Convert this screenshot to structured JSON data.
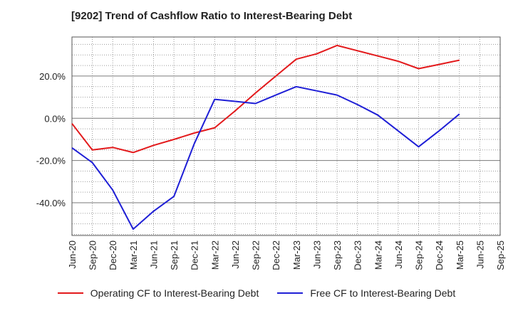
{
  "chart_data": {
    "type": "line",
    "title": "[9202]  Trend of Cashflow Ratio to Interest-Bearing Debt",
    "xlabel": "",
    "ylabel": "",
    "categories": [
      "Jun-20",
      "Sep-20",
      "Dec-20",
      "Mar-21",
      "Jun-21",
      "Sep-21",
      "Dec-21",
      "Mar-22",
      "Jun-22",
      "Sep-22",
      "Dec-22",
      "Mar-23",
      "Jun-23",
      "Sep-23",
      "Dec-23",
      "Mar-24",
      "Jun-24",
      "Sep-24",
      "Dec-24",
      "Mar-25",
      "Jun-25",
      "Sep-25"
    ],
    "y_ticks": [
      20,
      0,
      -20,
      -40
    ],
    "y_tick_labels": [
      "20.0%",
      "0.0%",
      "-20.0%",
      "-40.0%"
    ],
    "ylim": [
      -55.5,
      38.5
    ],
    "grid": true,
    "legend_position": "bottom",
    "series": [
      {
        "name": "Operating CF to Interest-Bearing Debt",
        "color": "#e31a1c",
        "values": [
          -2.5,
          -15.0,
          -13.8,
          -16.2,
          -12.8,
          -10.0,
          -7.0,
          -4.5,
          3.5,
          12.0,
          20.0,
          28.0,
          30.5,
          34.5,
          32.0,
          29.5,
          27.0,
          23.5,
          25.5,
          27.5,
          null,
          null
        ]
      },
      {
        "name": "Free CF to Interest-Bearing Debt",
        "color": "#1f1fd6",
        "values": [
          -14.0,
          -21.0,
          -34.0,
          -52.5,
          -44.0,
          -37.0,
          -12.0,
          9.0,
          8.0,
          7.0,
          11.0,
          15.0,
          13.0,
          11.0,
          6.5,
          1.5,
          -6.0,
          -13.5,
          -6.0,
          2.0,
          null,
          null
        ]
      }
    ]
  }
}
